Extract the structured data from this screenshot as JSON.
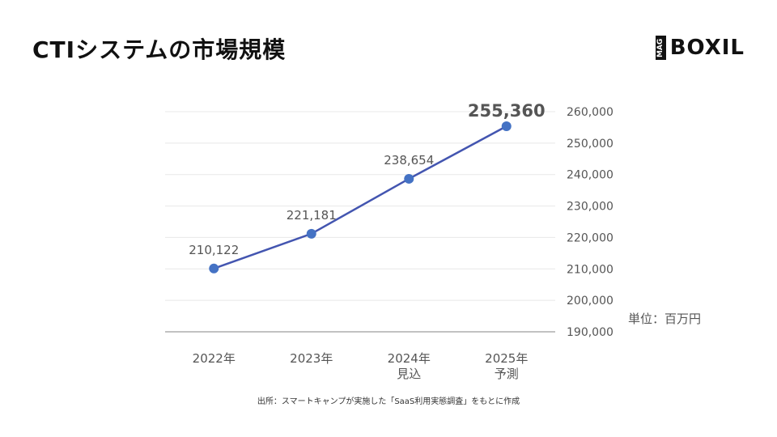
{
  "page": {
    "title": "CTIシステムの市場規模",
    "logo_badge": "MAG",
    "logo_text": "BOXIL",
    "unit_label": "単位：百万円",
    "source_note": "出所：スマートキャンプが実施した「SaaS利用実態調査」をもとに作成"
  },
  "colors": {
    "line": "#4355b0",
    "marker": "#4472c4",
    "grid": "#e8e8e8",
    "axis": "#9e9e9e",
    "text": "#555555"
  },
  "chart_data": {
    "type": "line",
    "categories": [
      [
        "2022年"
      ],
      [
        "2023年"
      ],
      [
        "2024年",
        "見込"
      ],
      [
        "2025年",
        "予測"
      ]
    ],
    "series": [
      {
        "values": [
          210122,
          221181,
          238654,
          255360
        ],
        "labels": [
          "210,122",
          "221,181",
          "238,654",
          "255,360"
        ]
      }
    ],
    "highlighted_index": 3,
    "ylim": [
      190000,
      260000
    ],
    "yticks": [
      190000,
      200000,
      210000,
      220000,
      230000,
      240000,
      250000,
      260000
    ],
    "ytick_labels": [
      "190,000",
      "200,000",
      "210,000",
      "220,000",
      "230,000",
      "240,000",
      "250,000",
      "260,000"
    ],
    "y_axis_side": "right",
    "grid": true,
    "legend": "none",
    "title": "CTIシステムの市場規模",
    "xlabel": "",
    "ylabel": ""
  }
}
